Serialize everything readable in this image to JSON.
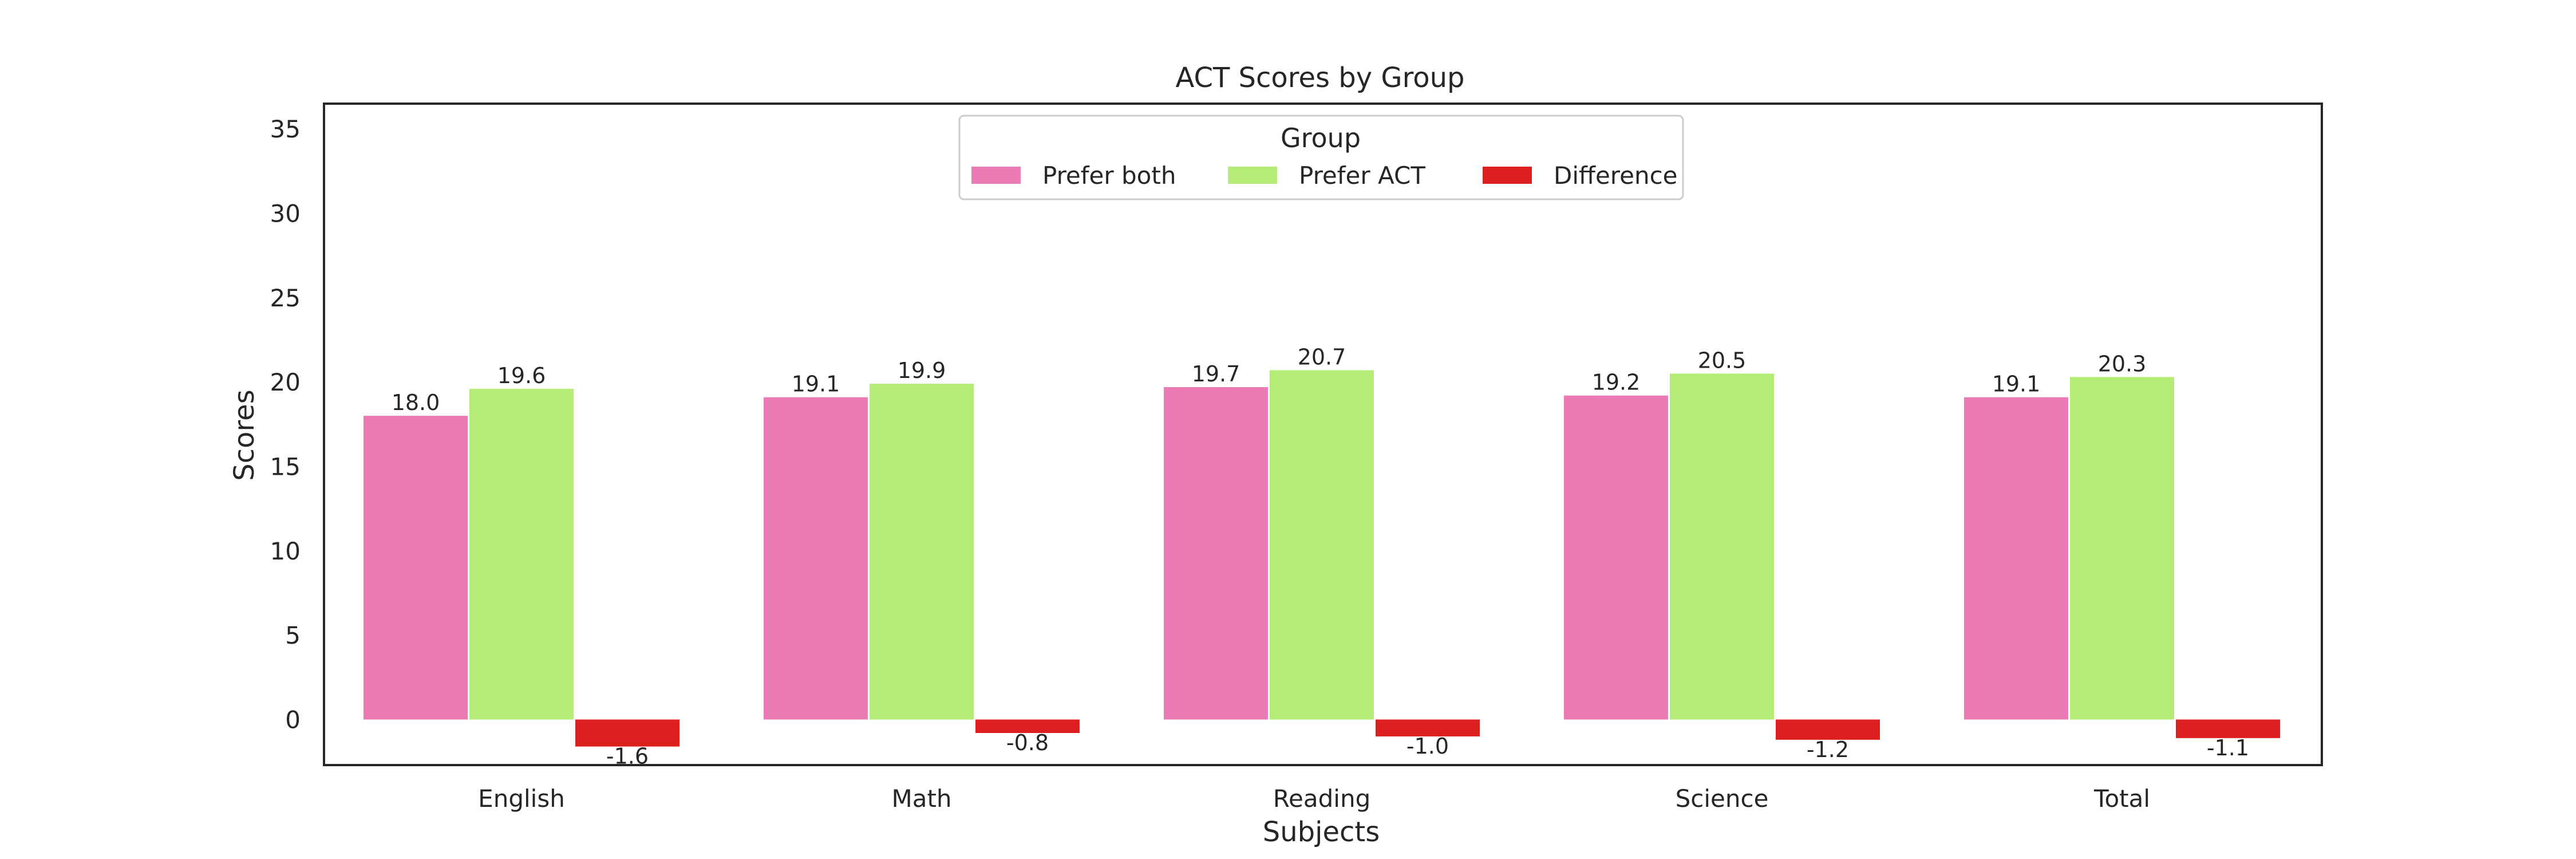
{
  "chart_data": {
    "type": "bar",
    "title": "ACT Scores by Group",
    "xlabel": "Subjects",
    "ylabel": "Scores",
    "categories": [
      "English",
      "Math",
      "Reading",
      "Science",
      "Total"
    ],
    "series": [
      {
        "name": "Prefer both",
        "color": "#ec7ab4",
        "values": [
          18.0,
          19.1,
          19.7,
          19.2,
          19.1
        ],
        "labels": [
          "18.0",
          "19.1",
          "19.7",
          "19.2",
          "19.1"
        ]
      },
      {
        "name": "Prefer ACT",
        "color": "#b3ed77",
        "values": [
          19.6,
          19.9,
          20.7,
          20.5,
          20.3
        ],
        "labels": [
          "19.6",
          "19.9",
          "20.7",
          "20.5",
          "20.3"
        ]
      },
      {
        "name": "Difference",
        "color": "#dc1f1f",
        "values": [
          -1.6,
          -0.8,
          -1.0,
          -1.2,
          -1.1
        ],
        "labels": [
          "-1.6",
          "-0.8",
          "-1.0",
          "-1.2",
          "-1.1"
        ]
      }
    ],
    "yticks": [
      0,
      5,
      10,
      15,
      20,
      25,
      30,
      35
    ],
    "ylim": [
      -2.7,
      36.5
    ],
    "grid": false,
    "legend": {
      "title": "Group",
      "placement": "upper center",
      "columns": 3
    }
  }
}
